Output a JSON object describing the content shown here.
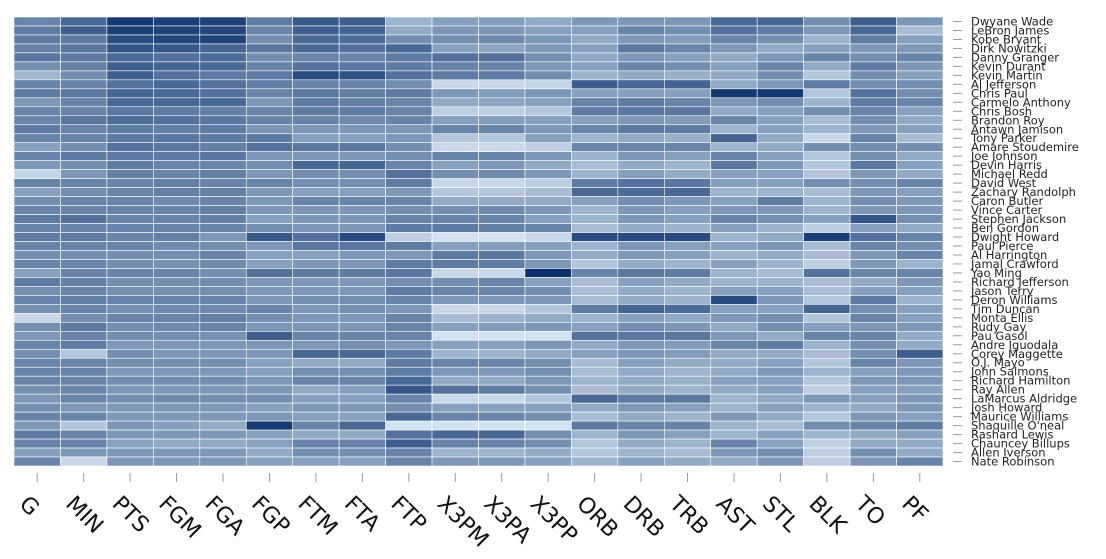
{
  "chart_data": {
    "type": "heatmap",
    "title": "",
    "columns": [
      "G",
      "MIN",
      "PTS",
      "FGM",
      "FGA",
      "FGP",
      "FTM",
      "FTA",
      "FTP",
      "X3PM",
      "X3PA",
      "X3PP",
      "ORB",
      "DRB",
      "TRB",
      "AST",
      "STL",
      "BLK",
      "TO",
      "PF"
    ],
    "rows": [
      "Dwyane Wade",
      "LeBron James",
      "Kobe Bryant",
      "Dirk Nowitzki",
      "Danny Granger",
      "Kevin Durant",
      "Kevin Martin",
      "Al Jefferson",
      "Chris Paul",
      "Carmelo Anthony",
      "Chris Bosh",
      "Brandon Roy",
      "Antawn Jamison",
      "Tony Parker",
      "Amare Stoudemire",
      "Joe Johnson",
      "Devin Harris",
      "Michael Redd",
      "David West",
      "Zachary Randolph",
      "Caron Butler",
      "Vince Carter",
      "Stephen Jackson",
      "Ben Gordon",
      "Dwight Howard",
      "Paul Pierce",
      "Al Harrington",
      "Jamal Crawford",
      "Yao Ming",
      "Richard Jefferson",
      "Jason Terry",
      "Deron Williams",
      "Tim Duncan",
      "Monta Ellis",
      "Rudy Gay",
      "Pau Gasol",
      "Andre Iguodala",
      "Corey Maggette",
      "O.J. Mayo",
      "John Salmons",
      "Richard Hamilton",
      "Ray Allen",
      "LaMarcus Aldridge",
      "Josh Howard",
      "Maurice Williams",
      "Shaquille O'neal",
      "Rashard Lewis",
      "Chauncey Billups",
      "Allen Iverson",
      "Nate Robinson"
    ],
    "color_scale": {
      "low": "#deebf7",
      "high": "#08306b",
      "scale": "sequential blues, normalized per column 0-1"
    },
    "values": [
      [
        0.55,
        0.7,
        0.95,
        0.92,
        0.9,
        0.6,
        0.78,
        0.75,
        0.3,
        0.4,
        0.42,
        0.35,
        0.45,
        0.45,
        0.45,
        0.7,
        0.72,
        0.5,
        0.75,
        0.45
      ],
      [
        0.6,
        0.75,
        0.92,
        0.9,
        0.88,
        0.55,
        0.75,
        0.72,
        0.35,
        0.45,
        0.45,
        0.4,
        0.4,
        0.55,
        0.5,
        0.65,
        0.6,
        0.45,
        0.7,
        0.25
      ],
      [
        0.6,
        0.6,
        0.85,
        0.88,
        0.9,
        0.5,
        0.7,
        0.68,
        0.5,
        0.5,
        0.52,
        0.45,
        0.35,
        0.45,
        0.42,
        0.55,
        0.5,
        0.3,
        0.6,
        0.4
      ],
      [
        0.55,
        0.62,
        0.8,
        0.78,
        0.72,
        0.62,
        0.7,
        0.65,
        0.7,
        0.4,
        0.38,
        0.45,
        0.4,
        0.62,
        0.55,
        0.45,
        0.35,
        0.4,
        0.45,
        0.45
      ],
      [
        0.62,
        0.6,
        0.7,
        0.65,
        0.68,
        0.5,
        0.55,
        0.55,
        0.6,
        0.65,
        0.65,
        0.5,
        0.35,
        0.45,
        0.4,
        0.35,
        0.45,
        0.55,
        0.5,
        0.55
      ],
      [
        0.5,
        0.58,
        0.75,
        0.72,
        0.7,
        0.55,
        0.65,
        0.62,
        0.6,
        0.55,
        0.55,
        0.45,
        0.4,
        0.55,
        0.5,
        0.4,
        0.55,
        0.35,
        0.6,
        0.45
      ],
      [
        0.28,
        0.5,
        0.75,
        0.65,
        0.6,
        0.6,
        0.85,
        0.82,
        0.65,
        0.6,
        0.6,
        0.5,
        0.3,
        0.35,
        0.32,
        0.35,
        0.5,
        0.2,
        0.5,
        0.4
      ],
      [
        0.55,
        0.55,
        0.65,
        0.7,
        0.65,
        0.58,
        0.55,
        0.55,
        0.5,
        0.1,
        0.1,
        0.12,
        0.75,
        0.7,
        0.72,
        0.35,
        0.45,
        0.6,
        0.5,
        0.5
      ],
      [
        0.6,
        0.62,
        0.72,
        0.7,
        0.65,
        0.55,
        0.62,
        0.58,
        0.6,
        0.45,
        0.42,
        0.45,
        0.4,
        0.4,
        0.4,
        0.95,
        0.95,
        0.2,
        0.65,
        0.5
      ],
      [
        0.45,
        0.55,
        0.7,
        0.7,
        0.7,
        0.45,
        0.6,
        0.58,
        0.55,
        0.35,
        0.38,
        0.4,
        0.55,
        0.6,
        0.55,
        0.45,
        0.5,
        0.3,
        0.6,
        0.55
      ],
      [
        0.55,
        0.55,
        0.62,
        0.6,
        0.58,
        0.55,
        0.6,
        0.6,
        0.55,
        0.15,
        0.15,
        0.2,
        0.6,
        0.62,
        0.62,
        0.35,
        0.4,
        0.5,
        0.55,
        0.4
      ],
      [
        0.55,
        0.62,
        0.68,
        0.65,
        0.62,
        0.55,
        0.55,
        0.52,
        0.55,
        0.4,
        0.42,
        0.4,
        0.4,
        0.45,
        0.42,
        0.55,
        0.4,
        0.25,
        0.5,
        0.35
      ],
      [
        0.6,
        0.55,
        0.6,
        0.58,
        0.6,
        0.45,
        0.45,
        0.45,
        0.45,
        0.55,
        0.55,
        0.45,
        0.55,
        0.62,
        0.6,
        0.3,
        0.4,
        0.3,
        0.45,
        0.4
      ],
      [
        0.55,
        0.55,
        0.6,
        0.62,
        0.6,
        0.6,
        0.4,
        0.4,
        0.45,
        0.2,
        0.2,
        0.4,
        0.3,
        0.35,
        0.32,
        0.72,
        0.35,
        0.1,
        0.55,
        0.25
      ],
      [
        0.4,
        0.5,
        0.65,
        0.62,
        0.58,
        0.65,
        0.62,
        0.62,
        0.5,
        0.1,
        0.1,
        0.15,
        0.55,
        0.55,
        0.55,
        0.3,
        0.35,
        0.5,
        0.5,
        0.5
      ],
      [
        0.55,
        0.6,
        0.6,
        0.6,
        0.62,
        0.45,
        0.45,
        0.45,
        0.5,
        0.55,
        0.55,
        0.45,
        0.3,
        0.45,
        0.4,
        0.55,
        0.4,
        0.2,
        0.5,
        0.35
      ],
      [
        0.45,
        0.5,
        0.6,
        0.55,
        0.55,
        0.5,
        0.7,
        0.72,
        0.55,
        0.4,
        0.45,
        0.35,
        0.25,
        0.35,
        0.3,
        0.62,
        0.45,
        0.2,
        0.62,
        0.4
      ],
      [
        0.12,
        0.45,
        0.58,
        0.55,
        0.58,
        0.45,
        0.5,
        0.5,
        0.65,
        0.5,
        0.52,
        0.45,
        0.3,
        0.4,
        0.35,
        0.4,
        0.4,
        0.2,
        0.45,
        0.35
      ],
      [
        0.55,
        0.55,
        0.55,
        0.58,
        0.55,
        0.55,
        0.5,
        0.5,
        0.6,
        0.1,
        0.1,
        0.15,
        0.6,
        0.65,
        0.62,
        0.4,
        0.4,
        0.5,
        0.5,
        0.55
      ],
      [
        0.4,
        0.5,
        0.55,
        0.58,
        0.58,
        0.45,
        0.4,
        0.4,
        0.45,
        0.2,
        0.2,
        0.25,
        0.7,
        0.68,
        0.7,
        0.3,
        0.3,
        0.25,
        0.45,
        0.4
      ],
      [
        0.5,
        0.55,
        0.55,
        0.52,
        0.55,
        0.45,
        0.55,
        0.55,
        0.55,
        0.35,
        0.35,
        0.35,
        0.4,
        0.5,
        0.45,
        0.4,
        0.6,
        0.3,
        0.5,
        0.45
      ],
      [
        0.55,
        0.55,
        0.55,
        0.55,
        0.58,
        0.45,
        0.45,
        0.45,
        0.5,
        0.5,
        0.52,
        0.45,
        0.3,
        0.45,
        0.4,
        0.45,
        0.45,
        0.3,
        0.45,
        0.45
      ],
      [
        0.6,
        0.65,
        0.55,
        0.55,
        0.58,
        0.4,
        0.45,
        0.45,
        0.55,
        0.55,
        0.55,
        0.4,
        0.3,
        0.45,
        0.4,
        0.55,
        0.5,
        0.4,
        0.8,
        0.5
      ],
      [
        0.55,
        0.55,
        0.55,
        0.55,
        0.55,
        0.5,
        0.45,
        0.45,
        0.6,
        0.6,
        0.58,
        0.55,
        0.25,
        0.35,
        0.3,
        0.4,
        0.3,
        0.15,
        0.4,
        0.35
      ],
      [
        0.6,
        0.6,
        0.55,
        0.58,
        0.45,
        0.78,
        0.65,
        0.85,
        0.15,
        0.05,
        0.05,
        0.1,
        0.85,
        0.85,
        0.85,
        0.3,
        0.35,
        0.92,
        0.65,
        0.55
      ],
      [
        0.55,
        0.55,
        0.55,
        0.52,
        0.5,
        0.45,
        0.62,
        0.62,
        0.6,
        0.4,
        0.42,
        0.4,
        0.3,
        0.45,
        0.4,
        0.4,
        0.45,
        0.25,
        0.55,
        0.5
      ],
      [
        0.5,
        0.5,
        0.5,
        0.5,
        0.55,
        0.4,
        0.4,
        0.45,
        0.45,
        0.6,
        0.62,
        0.45,
        0.35,
        0.45,
        0.4,
        0.3,
        0.35,
        0.25,
        0.45,
        0.55
      ],
      [
        0.55,
        0.55,
        0.5,
        0.48,
        0.52,
        0.4,
        0.45,
        0.45,
        0.6,
        0.6,
        0.6,
        0.45,
        0.2,
        0.35,
        0.3,
        0.4,
        0.3,
        0.15,
        0.45,
        0.3
      ],
      [
        0.4,
        0.55,
        0.55,
        0.55,
        0.5,
        0.65,
        0.6,
        0.6,
        0.62,
        0.1,
        0.1,
        1.0,
        0.55,
        0.62,
        0.6,
        0.3,
        0.25,
        0.65,
        0.55,
        0.55
      ],
      [
        0.6,
        0.58,
        0.5,
        0.5,
        0.5,
        0.45,
        0.45,
        0.45,
        0.5,
        0.5,
        0.55,
        0.4,
        0.25,
        0.4,
        0.35,
        0.3,
        0.3,
        0.25,
        0.35,
        0.45
      ],
      [
        0.5,
        0.55,
        0.5,
        0.5,
        0.5,
        0.45,
        0.45,
        0.45,
        0.6,
        0.55,
        0.55,
        0.5,
        0.25,
        0.35,
        0.3,
        0.4,
        0.4,
        0.25,
        0.4,
        0.4
      ],
      [
        0.55,
        0.58,
        0.55,
        0.55,
        0.55,
        0.45,
        0.5,
        0.5,
        0.55,
        0.45,
        0.45,
        0.45,
        0.25,
        0.35,
        0.3,
        0.85,
        0.45,
        0.2,
        0.6,
        0.3
      ],
      [
        0.5,
        0.55,
        0.5,
        0.52,
        0.52,
        0.55,
        0.45,
        0.5,
        0.45,
        0.1,
        0.1,
        0.2,
        0.6,
        0.72,
        0.68,
        0.4,
        0.4,
        0.72,
        0.5,
        0.4
      ],
      [
        0.1,
        0.5,
        0.55,
        0.55,
        0.58,
        0.5,
        0.45,
        0.45,
        0.55,
        0.25,
        0.3,
        0.35,
        0.3,
        0.4,
        0.35,
        0.45,
        0.5,
        0.2,
        0.55,
        0.4
      ],
      [
        0.5,
        0.6,
        0.5,
        0.52,
        0.55,
        0.45,
        0.45,
        0.45,
        0.55,
        0.4,
        0.42,
        0.45,
        0.4,
        0.5,
        0.45,
        0.35,
        0.5,
        0.4,
        0.45,
        0.45
      ],
      [
        0.45,
        0.55,
        0.5,
        0.5,
        0.48,
        0.75,
        0.55,
        0.55,
        0.55,
        0.05,
        0.05,
        0.05,
        0.65,
        0.62,
        0.62,
        0.45,
        0.35,
        0.55,
        0.55,
        0.35
      ],
      [
        0.55,
        0.6,
        0.45,
        0.45,
        0.45,
        0.45,
        0.45,
        0.5,
        0.45,
        0.4,
        0.4,
        0.45,
        0.35,
        0.45,
        0.42,
        0.55,
        0.6,
        0.3,
        0.5,
        0.35
      ],
      [
        0.5,
        0.2,
        0.5,
        0.45,
        0.45,
        0.45,
        0.7,
        0.7,
        0.6,
        0.3,
        0.3,
        0.35,
        0.4,
        0.45,
        0.42,
        0.35,
        0.35,
        0.25,
        0.5,
        0.75
      ],
      [
        0.55,
        0.55,
        0.5,
        0.5,
        0.5,
        0.4,
        0.35,
        0.35,
        0.6,
        0.55,
        0.55,
        0.5,
        0.25,
        0.4,
        0.35,
        0.35,
        0.4,
        0.2,
        0.55,
        0.45
      ],
      [
        0.55,
        0.55,
        0.45,
        0.45,
        0.45,
        0.4,
        0.5,
        0.5,
        0.6,
        0.45,
        0.45,
        0.5,
        0.25,
        0.35,
        0.3,
        0.35,
        0.45,
        0.3,
        0.4,
        0.45
      ],
      [
        0.55,
        0.55,
        0.5,
        0.5,
        0.5,
        0.45,
        0.55,
        0.55,
        0.7,
        0.35,
        0.35,
        0.45,
        0.3,
        0.35,
        0.32,
        0.4,
        0.4,
        0.2,
        0.45,
        0.45
      ],
      [
        0.5,
        0.55,
        0.45,
        0.45,
        0.45,
        0.45,
        0.35,
        0.4,
        0.8,
        0.65,
        0.6,
        0.5,
        0.25,
        0.35,
        0.3,
        0.35,
        0.4,
        0.15,
        0.4,
        0.4
      ],
      [
        0.45,
        0.55,
        0.5,
        0.52,
        0.5,
        0.5,
        0.4,
        0.4,
        0.55,
        0.1,
        0.1,
        0.2,
        0.7,
        0.6,
        0.62,
        0.3,
        0.35,
        0.45,
        0.4,
        0.45
      ],
      [
        0.5,
        0.45,
        0.45,
        0.45,
        0.45,
        0.4,
        0.45,
        0.45,
        0.5,
        0.4,
        0.4,
        0.4,
        0.35,
        0.45,
        0.4,
        0.3,
        0.4,
        0.3,
        0.35,
        0.45
      ],
      [
        0.55,
        0.55,
        0.45,
        0.45,
        0.45,
        0.45,
        0.4,
        0.4,
        0.7,
        0.55,
        0.55,
        0.5,
        0.25,
        0.35,
        0.3,
        0.45,
        0.35,
        0.2,
        0.45,
        0.4
      ],
      [
        0.45,
        0.2,
        0.45,
        0.4,
        0.35,
        0.95,
        0.55,
        0.7,
        0.05,
        0.05,
        0.05,
        0.05,
        0.6,
        0.55,
        0.55,
        0.3,
        0.25,
        0.5,
        0.55,
        0.6
      ],
      [
        0.6,
        0.55,
        0.45,
        0.45,
        0.45,
        0.4,
        0.35,
        0.35,
        0.65,
        0.7,
        0.7,
        0.5,
        0.3,
        0.45,
        0.4,
        0.3,
        0.4,
        0.3,
        0.35,
        0.4
      ],
      [
        0.55,
        0.55,
        0.4,
        0.35,
        0.35,
        0.4,
        0.55,
        0.55,
        0.75,
        0.55,
        0.55,
        0.5,
        0.2,
        0.35,
        0.3,
        0.55,
        0.4,
        0.15,
        0.35,
        0.35
      ],
      [
        0.4,
        0.45,
        0.45,
        0.45,
        0.45,
        0.35,
        0.5,
        0.5,
        0.55,
        0.3,
        0.3,
        0.35,
        0.2,
        0.3,
        0.25,
        0.45,
        0.5,
        0.15,
        0.5,
        0.35
      ],
      [
        0.55,
        0.1,
        0.45,
        0.45,
        0.45,
        0.4,
        0.4,
        0.4,
        0.55,
        0.45,
        0.45,
        0.4,
        0.3,
        0.4,
        0.35,
        0.35,
        0.45,
        0.15,
        0.45,
        0.55
      ]
    ]
  }
}
